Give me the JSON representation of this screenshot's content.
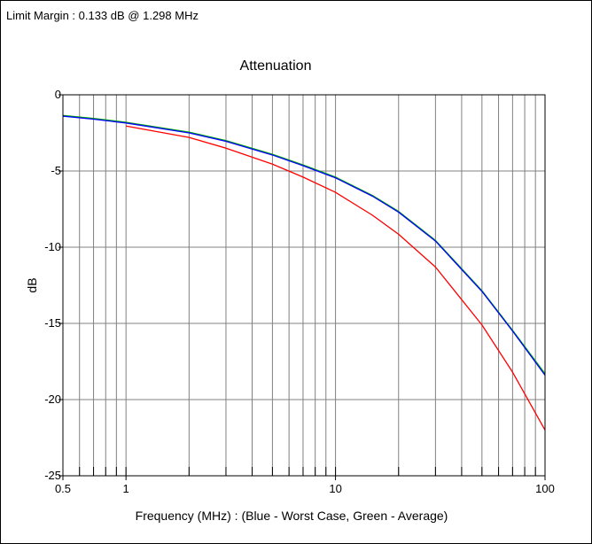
{
  "header": {
    "limit_margin": "Limit Margin : 0.133 dB @ 1.298 MHz"
  },
  "chart_data": {
    "type": "line",
    "title": "Attenuation",
    "xlabel": "Frequency (MHz) : (Blue - Worst Case, Green - Average)",
    "ylabel": "dB",
    "x_scale": "log",
    "xlim": [
      0.5,
      100
    ],
    "ylim": [
      -25,
      0
    ],
    "x_ticks": [
      {
        "value": 0.5,
        "label": "0.5"
      },
      {
        "value": 1,
        "label": "1"
      },
      {
        "value": 10,
        "label": "10"
      },
      {
        "value": 100,
        "label": "100"
      }
    ],
    "y_ticks": [
      {
        "value": 0,
        "label": "0"
      },
      {
        "value": -5,
        "label": "-5"
      },
      {
        "value": -10,
        "label": "-10"
      },
      {
        "value": -15,
        "label": "-15"
      },
      {
        "value": -20,
        "label": "-20"
      },
      {
        "value": -25,
        "label": "-25"
      }
    ],
    "grid": true,
    "colors": {
      "worst_case": "#0000ff",
      "average": "#00b000",
      "limit": "#ff0000",
      "grid": "#808080"
    },
    "series": [
      {
        "key": "worst_case",
        "x": [
          0.5,
          0.7,
          1,
          2,
          3,
          5,
          7,
          10,
          15,
          20,
          30,
          50,
          70,
          100
        ],
        "y": [
          -1.4,
          -1.6,
          -1.85,
          -2.5,
          -3.05,
          -3.95,
          -4.65,
          -5.45,
          -6.65,
          -7.7,
          -9.6,
          -12.9,
          -15.5,
          -18.4
        ]
      },
      {
        "key": "average",
        "x": [
          0.5,
          0.7,
          1,
          2,
          3,
          5,
          7,
          10,
          15,
          20,
          30,
          50,
          70,
          100
        ],
        "y": [
          -1.35,
          -1.55,
          -1.8,
          -2.45,
          -3.0,
          -3.9,
          -4.6,
          -5.4,
          -6.6,
          -7.65,
          -9.55,
          -12.85,
          -15.45,
          -18.3
        ]
      },
      {
        "key": "limit",
        "x": [
          1,
          2,
          3,
          5,
          7,
          10,
          15,
          20,
          30,
          50,
          70,
          100
        ],
        "y": [
          -2.05,
          -2.8,
          -3.5,
          -4.55,
          -5.4,
          -6.4,
          -7.9,
          -9.15,
          -11.3,
          -15.1,
          -18.2,
          -22.0
        ]
      }
    ]
  }
}
